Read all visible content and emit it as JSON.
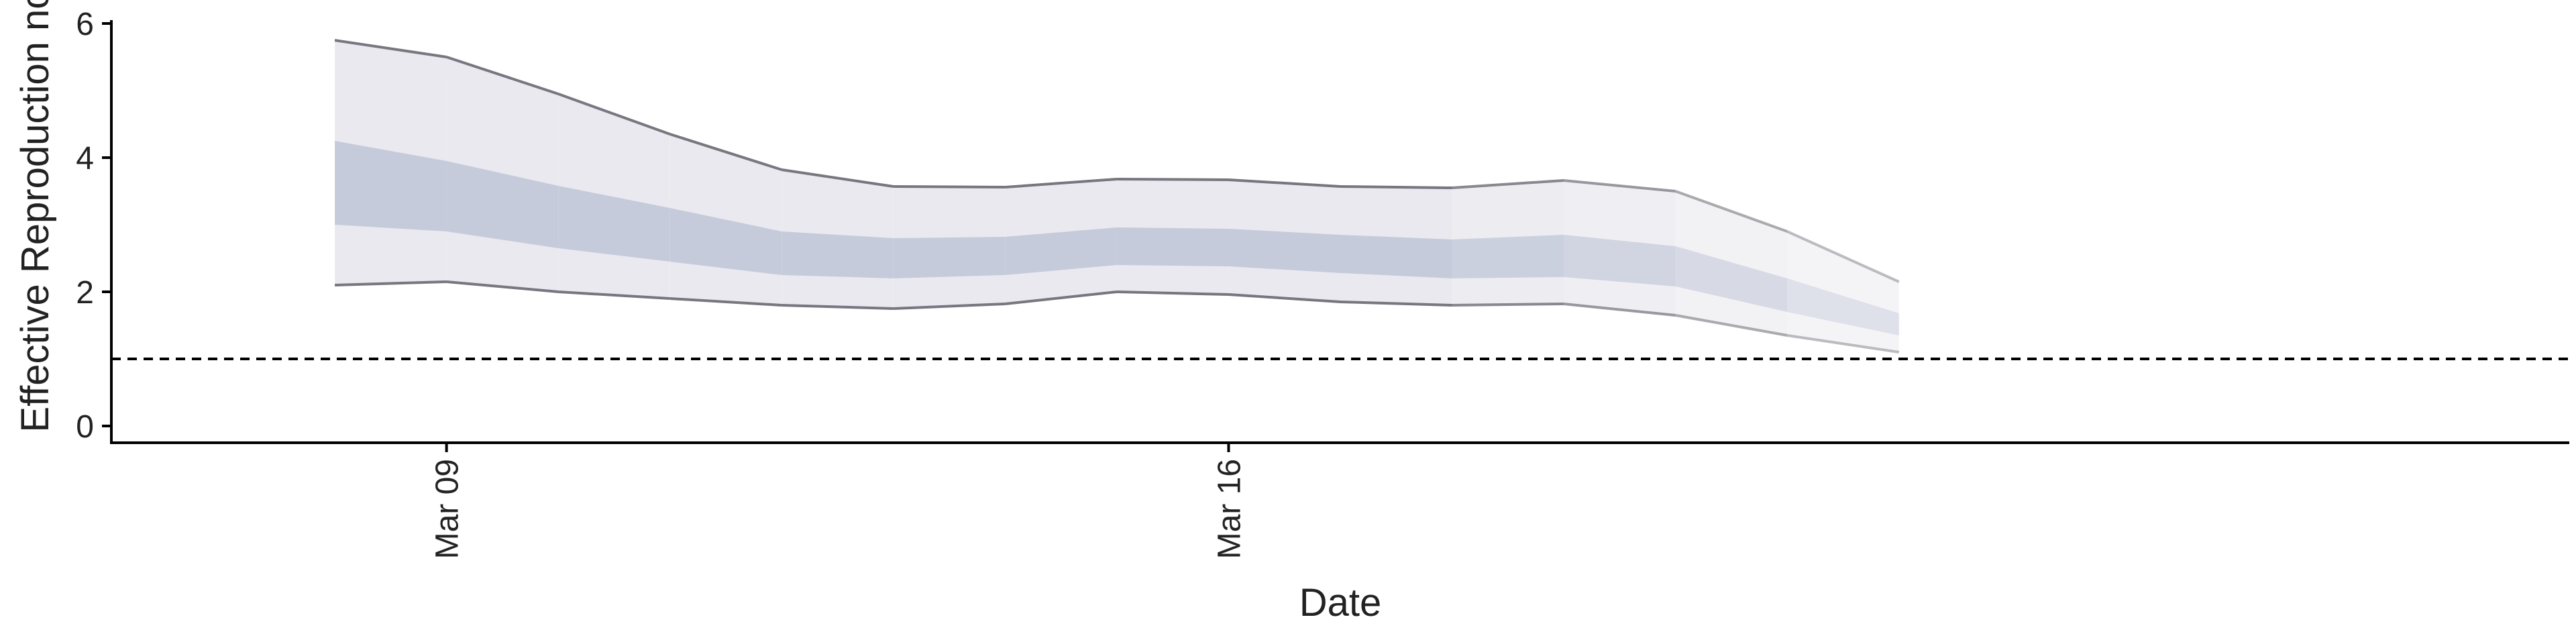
{
  "chart_data": {
    "type": "area",
    "xlabel": "Date",
    "ylabel": "Effective Reproduction no.",
    "ylim": [
      -0.25,
      6.05
    ],
    "xlim": [
      "2020-03-06",
      "2020-03-28"
    ],
    "x_tick_labels": [
      {
        "date": "2020-03-09",
        "label": "Mar 09"
      },
      {
        "date": "2020-03-16",
        "label": "Mar 16"
      }
    ],
    "y_ticks": [
      0,
      2,
      4,
      6
    ],
    "reference_line": 1,
    "grid": false,
    "dates": [
      "2020-03-08",
      "2020-03-09",
      "2020-03-10",
      "2020-03-11",
      "2020-03-12",
      "2020-03-13",
      "2020-03-14",
      "2020-03-15",
      "2020-03-16",
      "2020-03-17",
      "2020-03-18",
      "2020-03-19",
      "2020-03-20",
      "2020-03-21",
      "2020-03-22"
    ],
    "series": [
      {
        "name": "",
        "values": {
          "lower_outer": [
            2.1,
            2.15,
            2.0,
            1.9,
            1.8,
            1.75,
            1.82,
            2.0,
            1.96,
            1.85,
            1.8,
            1.82,
            1.65,
            1.35,
            1.1
          ],
          "upper_outer": [
            5.75,
            5.5,
            4.95,
            4.35,
            3.82,
            3.57,
            3.56,
            3.68,
            3.67,
            3.57,
            3.55,
            3.66,
            3.5,
            2.9,
            2.15
          ],
          "lower_inner": [
            3.0,
            2.9,
            2.65,
            2.45,
            2.25,
            2.2,
            2.25,
            2.4,
            2.38,
            2.28,
            2.2,
            2.22,
            2.08,
            1.7,
            1.35
          ],
          "upper_inner": [
            4.25,
            3.95,
            3.58,
            3.25,
            2.9,
            2.8,
            2.82,
            2.96,
            2.94,
            2.85,
            2.78,
            2.85,
            2.68,
            2.2,
            1.68
          ]
        }
      }
    ],
    "colors": {
      "outer_band": "#e9e9ef",
      "inner_band": "#c6cbdb",
      "bound_line": "#777780",
      "reference_line": "#000000",
      "axis": "#000000"
    }
  }
}
